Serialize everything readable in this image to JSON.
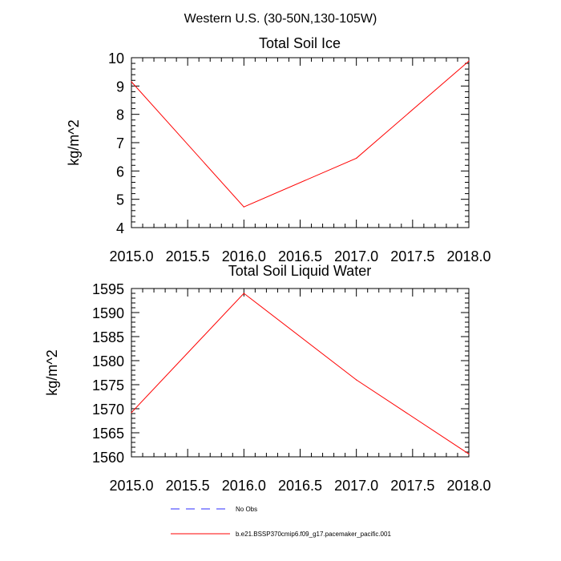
{
  "header": {
    "title": "Western U.S. (30-50N,130-105W)"
  },
  "legend": [
    {
      "label": "No Obs",
      "color": "#2b2bff",
      "style": "dashed"
    },
    {
      "label": "b.e21.BSSP370cmip6.f09_g17.pacemaker_pacific.001",
      "color": "#ff0000",
      "style": "solid"
    }
  ],
  "chart_data": [
    {
      "type": "line",
      "title": "Total Soil Ice",
      "xlabel": "",
      "ylabel": "kg/m^2",
      "xlim": [
        2015.0,
        2018.0
      ],
      "ylim": [
        4,
        10
      ],
      "xticks": [
        "2015.0",
        "2015.5",
        "2016.0",
        "2016.5",
        "2017.0",
        "2017.5",
        "2018.0"
      ],
      "yticks": [
        "4",
        "5",
        "6",
        "7",
        "8",
        "9",
        "10"
      ],
      "grid": false,
      "series": [
        {
          "name": "b.e21.BSSP370cmip6.f09_g17.pacemaker_pacific.001",
          "color": "#ff0000",
          "x": [
            2015.0,
            2016.0,
            2017.0,
            2018.0
          ],
          "values": [
            9.15,
            4.73,
            6.45,
            9.88
          ]
        }
      ]
    },
    {
      "type": "line",
      "title": "Total Soil Liquid Water",
      "xlabel": "",
      "ylabel": "kg/m^2",
      "xlim": [
        2015.0,
        2018.0
      ],
      "ylim": [
        1560,
        1595
      ],
      "xticks": [
        "2015.0",
        "2015.5",
        "2016.0",
        "2016.5",
        "2017.0",
        "2017.5",
        "2018.0"
      ],
      "yticks": [
        "1560",
        "1565",
        "1570",
        "1575",
        "1580",
        "1585",
        "1590",
        "1595"
      ],
      "grid": false,
      "series": [
        {
          "name": "b.e21.BSSP370cmip6.f09_g17.pacemaker_pacific.001",
          "color": "#ff0000",
          "x": [
            2015.0,
            2016.0,
            2017.0,
            2018.0
          ],
          "values": [
            1569.2,
            1594.0,
            1576.0,
            1560.6
          ]
        }
      ]
    }
  ]
}
